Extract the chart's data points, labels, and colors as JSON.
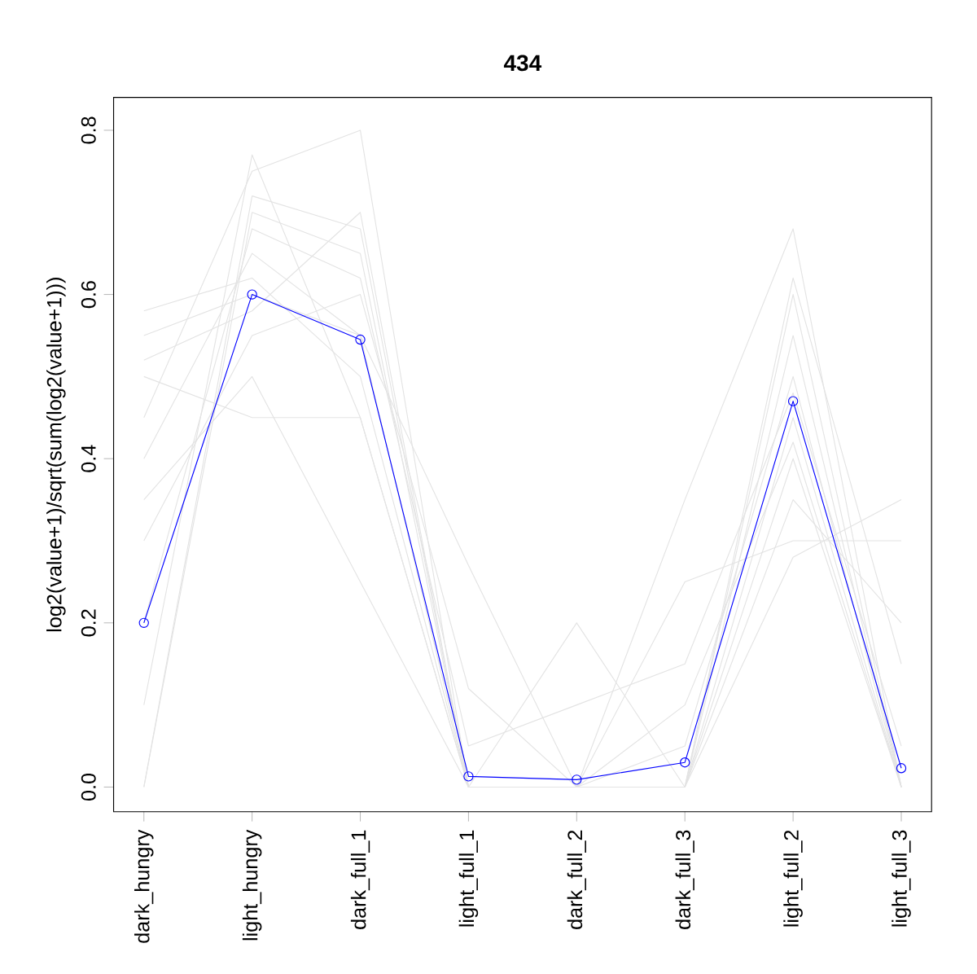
{
  "chart_data": {
    "type": "line",
    "title": "434",
    "ylabel": "log2(value+1)/sqrt(sum(log2(value+1)))",
    "categories": [
      "dark_hungry",
      "light_hungry",
      "dark_full_1",
      "light_full_1",
      "dark_full_2",
      "dark_full_3",
      "light_full_2",
      "light_full_3"
    ],
    "ylim": [
      -0.03,
      0.84
    ],
    "yticks": [
      {
        "value": 0,
        "label": "0.0"
      },
      {
        "value": 0.2,
        "label": "0.2"
      },
      {
        "value": 0.4,
        "label": "0.4"
      },
      {
        "value": 0.6,
        "label": "0.6"
      },
      {
        "value": 0.8,
        "label": "0.8"
      }
    ],
    "grid": false,
    "line_style": "solid",
    "series": [
      {
        "color": "#e3e3e3",
        "marker": "none",
        "values": [
          0.0,
          0.7,
          0.65,
          0.0,
          0.0,
          0.0,
          0.55,
          0.0
        ]
      },
      {
        "color": "#e3e3e3",
        "marker": "none",
        "values": [
          0.55,
          0.6,
          0.55,
          0.0,
          0.0,
          0.0,
          0.4,
          0.0
        ]
      },
      {
        "color": "#e3e3e3",
        "marker": "none",
        "values": [
          0.45,
          0.75,
          0.8,
          0.0,
          0.0,
          0.0,
          0.45,
          0.0
        ]
      },
      {
        "color": "#e3e3e3",
        "marker": "none",
        "values": [
          0.3,
          0.55,
          0.6,
          0.12,
          0.0,
          0.05,
          0.5,
          0.0
        ]
      },
      {
        "color": "#e3e3e3",
        "marker": "none",
        "values": [
          0.5,
          0.45,
          0.45,
          0.0,
          0.0,
          0.25,
          0.3,
          0.3
        ]
      },
      {
        "color": "#e3e3e3",
        "marker": "none",
        "values": [
          0.4,
          0.65,
          0.55,
          0.27,
          0.0,
          0.0,
          0.6,
          0.0
        ]
      },
      {
        "color": "#e3e3e3",
        "marker": "none",
        "values": [
          0.0,
          0.72,
          0.68,
          0.0,
          0.2,
          0.0,
          0.35,
          0.2
        ]
      },
      {
        "color": "#e3e3e3",
        "marker": "none",
        "values": [
          0.35,
          0.5,
          0.25,
          0.0,
          0.0,
          0.35,
          0.68,
          0.0
        ]
      },
      {
        "color": "#e3e3e3",
        "marker": "none",
        "values": [
          0.58,
          0.62,
          0.5,
          0.0,
          0.0,
          0.0,
          0.28,
          0.35
        ]
      },
      {
        "color": "#e3e3e3",
        "marker": "none",
        "values": [
          0.2,
          0.68,
          0.62,
          0.05,
          0.1,
          0.15,
          0.48,
          0.05
        ]
      },
      {
        "color": "#e3e3e3",
        "marker": "none",
        "values": [
          0.52,
          0.58,
          0.7,
          0.0,
          0.0,
          0.0,
          0.62,
          0.15
        ]
      },
      {
        "color": "#e3e3e3",
        "marker": "none",
        "values": [
          0.1,
          0.77,
          0.45,
          0.0,
          0.0,
          0.1,
          0.42,
          0.0
        ]
      },
      {
        "color": "#0000ff",
        "marker": "circle",
        "values": [
          0.2,
          0.6,
          0.545,
          0.013,
          0.009,
          0.03,
          0.47,
          0.023
        ]
      }
    ]
  }
}
